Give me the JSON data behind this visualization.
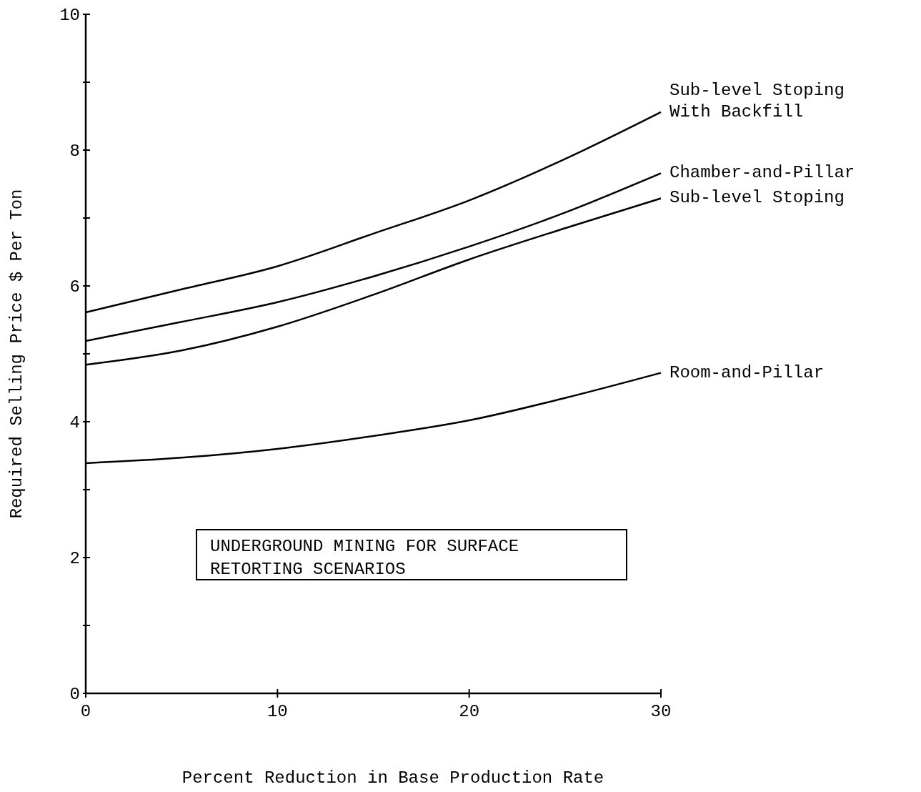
{
  "chart_data": {
    "type": "line",
    "xlabel": "Percent Reduction in Base Production Rate",
    "ylabel": "Required Selling Price  $ Per Ton",
    "x": [
      0,
      5,
      10,
      15,
      20,
      25,
      30
    ],
    "series": [
      {
        "name": "Sub-level Stoping\nWith Backfill",
        "color": "#000000",
        "values": [
          5.61,
          5.95,
          6.29,
          6.77,
          7.26,
          7.87,
          8.56
        ]
      },
      {
        "name": "Chamber-and-Pillar",
        "color": "#000000",
        "values": [
          5.19,
          5.47,
          5.76,
          6.14,
          6.58,
          7.08,
          7.66
        ]
      },
      {
        "name": "Sub-level Stoping",
        "color": "#000000",
        "values": [
          4.84,
          5.05,
          5.4,
          5.87,
          6.39,
          6.85,
          7.29
        ]
      },
      {
        "name": "Room-and-Pillar",
        "color": "#000000",
        "values": [
          3.39,
          3.47,
          3.6,
          3.79,
          4.02,
          4.35,
          4.72
        ]
      }
    ],
    "xlim": [
      0,
      30
    ],
    "xticks": [
      0,
      10,
      20,
      30
    ],
    "ylim": [
      0,
      10
    ],
    "yticks": [
      0,
      {
        "value": 1,
        "label": null
      },
      2,
      {
        "value": 3,
        "label": null
      },
      4,
      {
        "value": 5,
        "label": null
      },
      6,
      {
        "value": 7,
        "label": null
      },
      8,
      {
        "value": 9,
        "label": null
      },
      {
        "value": 10,
        "label": "10"
      }
    ],
    "annotations": [
      "UNDERGROUND MINING FOR SURFACE\nRETORTING SCENARIOS"
    ],
    "grid": false,
    "marker": "none",
    "line_style": "solid"
  }
}
